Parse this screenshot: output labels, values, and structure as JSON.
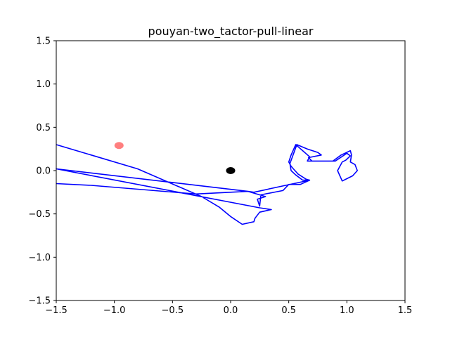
{
  "chart_data": {
    "type": "line",
    "title": "pouyan-two_tactor-pull-linear",
    "xlabel": "",
    "ylabel": "",
    "xlim": [
      -1.5,
      1.5
    ],
    "ylim": [
      -1.5,
      1.5
    ],
    "x_ticks": [
      -1.5,
      -1.0,
      -0.5,
      0.0,
      0.5,
      1.0,
      1.5
    ],
    "x_tick_labels": [
      "−1.5",
      "−1.0",
      "−0.5",
      "0.0",
      "0.5",
      "1.0",
      "1.5"
    ],
    "y_ticks": [
      -1.5,
      -1.0,
      -0.5,
      0.0,
      0.5,
      1.0,
      1.5
    ],
    "y_tick_labels": [
      "−1.5",
      "−1.0",
      "−0.5",
      "0.0",
      "0.5",
      "1.0",
      "1.5"
    ],
    "grid": false,
    "series": [
      {
        "color": "#0000ff",
        "points": [
          [
            -1.5,
            0.3
          ],
          [
            -0.8,
            0.02
          ],
          [
            -0.25,
            -0.3
          ],
          [
            -0.1,
            -0.42
          ],
          [
            0.0,
            -0.53
          ],
          [
            0.1,
            -0.62
          ],
          [
            0.2,
            -0.59
          ],
          [
            0.21,
            -0.55
          ],
          [
            0.25,
            -0.48
          ],
          [
            0.35,
            -0.45
          ],
          [
            0.25,
            -0.43
          ],
          [
            -1.5,
            0.02
          ],
          [
            0.15,
            -0.24
          ],
          [
            0.3,
            -0.3
          ],
          [
            0.23,
            -0.33
          ],
          [
            0.25,
            -0.41
          ],
          [
            0.26,
            -0.28
          ],
          [
            0.45,
            -0.23
          ],
          [
            0.5,
            -0.16
          ],
          [
            0.6,
            -0.16
          ],
          [
            0.68,
            -0.11
          ],
          [
            0.62,
            -0.11
          ],
          [
            0.56,
            -0.05
          ],
          [
            0.52,
            0.0
          ],
          [
            0.51,
            0.08
          ],
          [
            0.57,
            0.3
          ],
          [
            0.66,
            0.25
          ],
          [
            0.75,
            0.21
          ],
          [
            0.78,
            0.18
          ],
          [
            0.67,
            0.15
          ],
          [
            0.7,
            0.11
          ],
          [
            0.9,
            0.11
          ],
          [
            1.0,
            0.2
          ],
          [
            1.03,
            0.17
          ],
          [
            0.99,
            0.12
          ],
          [
            0.96,
            0.1
          ],
          [
            0.92,
            0.0
          ],
          [
            0.96,
            -0.12
          ],
          [
            1.05,
            -0.06
          ],
          [
            1.09,
            0.0
          ],
          [
            1.07,
            0.07
          ],
          [
            1.03,
            0.1
          ],
          [
            1.04,
            0.18
          ],
          [
            1.03,
            0.23
          ],
          [
            0.95,
            0.18
          ],
          [
            0.88,
            0.11
          ],
          [
            0.85,
            0.11
          ],
          [
            0.66,
            0.11
          ],
          [
            0.68,
            0.16
          ],
          [
            0.56,
            0.3
          ],
          [
            0.52,
            0.18
          ],
          [
            0.5,
            0.1
          ],
          [
            0.52,
            0.05
          ],
          [
            0.54,
            0.02
          ],
          [
            0.58,
            -0.04
          ],
          [
            0.65,
            -0.1
          ],
          [
            0.68,
            -0.11
          ],
          [
            0.2,
            -0.25
          ],
          [
            0.15,
            -0.24
          ],
          [
            -0.3,
            -0.27
          ],
          [
            -1.2,
            -0.17
          ],
          [
            -1.5,
            -0.15
          ]
        ]
      }
    ],
    "markers": [
      {
        "x": -0.96,
        "y": 0.29,
        "color": "#ff0000",
        "opacity": 0.5
      },
      {
        "x": 0.0,
        "y": 0.0,
        "color": "#000000",
        "opacity": 1.0
      }
    ]
  }
}
